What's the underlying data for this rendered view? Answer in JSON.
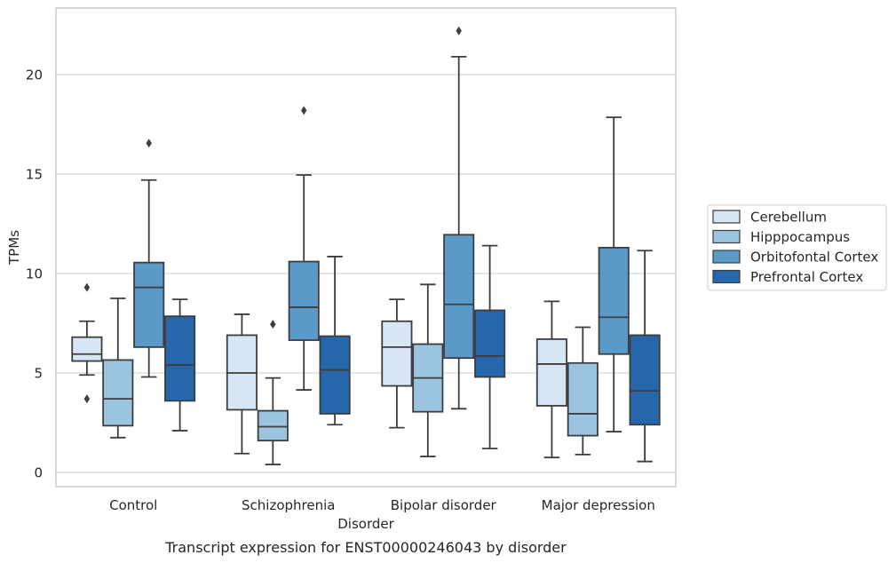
{
  "chart_data": {
    "type": "box",
    "title": "",
    "caption": "Transcript expression for ENST00000246043 by disorder",
    "xlabel": "Disorder",
    "ylabel": "TPMs",
    "ylim": [
      -0.6,
      23.7
    ],
    "yticks": [
      0,
      5,
      10,
      15,
      20
    ],
    "grid": true,
    "legend_position": "right-center",
    "categories": [
      "Control",
      "Schizophrenia",
      "Bipolar disorder",
      "Major depression"
    ],
    "series": [
      {
        "name": "Cerebellum",
        "color": "#d7e6f4",
        "boxes": [
          {
            "whislo": 4.9,
            "q1": 5.6,
            "med": 5.95,
            "q3": 6.8,
            "whishi": 7.6,
            "fliers": [
              9.3,
              3.7
            ]
          },
          {
            "whislo": 0.95,
            "q1": 3.15,
            "med": 5.0,
            "q3": 6.9,
            "whishi": 7.95,
            "fliers": []
          },
          {
            "whislo": 2.25,
            "q1": 4.35,
            "med": 6.3,
            "q3": 7.6,
            "whishi": 8.7,
            "fliers": []
          },
          {
            "whislo": 0.75,
            "q1": 3.35,
            "med": 5.45,
            "q3": 6.7,
            "whishi": 8.6,
            "fliers": []
          }
        ]
      },
      {
        "name": "Hipppocampus",
        "color": "#9ac4e0",
        "boxes": [
          {
            "whislo": 1.75,
            "q1": 2.35,
            "med": 3.7,
            "q3": 5.65,
            "whishi": 8.75,
            "fliers": []
          },
          {
            "whislo": 0.4,
            "q1": 1.6,
            "med": 2.3,
            "q3": 3.1,
            "whishi": 4.75,
            "fliers": [
              7.45
            ]
          },
          {
            "whislo": 0.8,
            "q1": 3.05,
            "med": 4.75,
            "q3": 6.45,
            "whishi": 9.45,
            "fliers": []
          },
          {
            "whislo": 0.9,
            "q1": 1.85,
            "med": 2.95,
            "q3": 5.5,
            "whishi": 7.3,
            "fliers": []
          }
        ]
      },
      {
        "name": "Orbitofontal Cortex",
        "color": "#5b9ac8",
        "boxes": [
          {
            "whislo": 4.8,
            "q1": 6.3,
            "med": 9.3,
            "q3": 10.55,
            "whishi": 14.7,
            "fliers": [
              16.55
            ]
          },
          {
            "whislo": 4.15,
            "q1": 6.65,
            "med": 8.3,
            "q3": 10.6,
            "whishi": 14.95,
            "fliers": [
              18.2
            ]
          },
          {
            "whislo": 3.2,
            "q1": 5.75,
            "med": 8.45,
            "q3": 11.95,
            "whishi": 20.9,
            "fliers": [
              22.2
            ]
          },
          {
            "whislo": 2.05,
            "q1": 5.95,
            "med": 7.8,
            "q3": 11.3,
            "whishi": 17.85,
            "fliers": []
          }
        ]
      },
      {
        "name": "Prefrontal Cortex",
        "color": "#2567aa",
        "boxes": [
          {
            "whislo": 2.1,
            "q1": 3.6,
            "med": 5.4,
            "q3": 7.85,
            "whishi": 8.7,
            "fliers": []
          },
          {
            "whislo": 2.4,
            "q1": 2.95,
            "med": 5.15,
            "q3": 6.85,
            "whishi": 10.85,
            "fliers": []
          },
          {
            "whislo": 1.2,
            "q1": 4.8,
            "med": 5.85,
            "q3": 8.15,
            "whishi": 11.4,
            "fliers": []
          },
          {
            "whislo": 0.55,
            "q1": 2.4,
            "med": 4.1,
            "q3": 6.9,
            "whishi": 11.15,
            "fliers": []
          }
        ]
      }
    ]
  }
}
